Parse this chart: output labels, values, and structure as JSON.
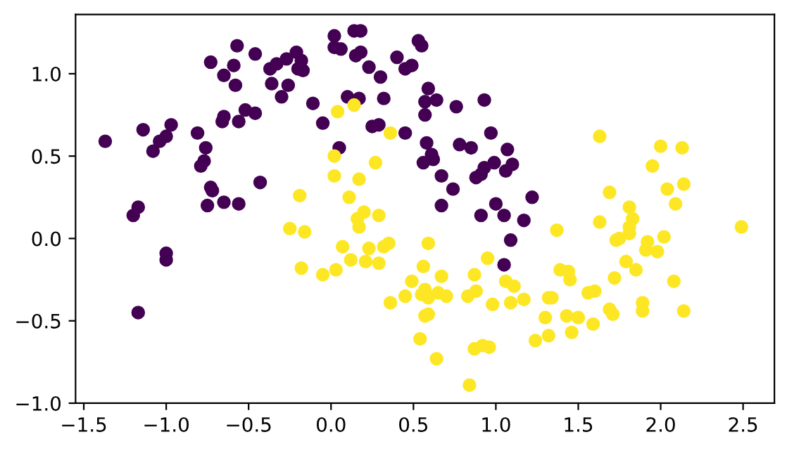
{
  "chart_data": {
    "type": "scatter",
    "xlim": [
      -1.55,
      2.69
    ],
    "ylim": [
      -1.0,
      1.36
    ],
    "xticks": [
      {
        "value": -1.5,
        "label": "−1.5"
      },
      {
        "value": -1.0,
        "label": "−1.0"
      },
      {
        "value": -0.5,
        "label": "−0.5"
      },
      {
        "value": 0.0,
        "label": "0.0"
      },
      {
        "value": 0.5,
        "label": "0.5"
      },
      {
        "value": 1.0,
        "label": "1.0"
      },
      {
        "value": 1.5,
        "label": "1.5"
      },
      {
        "value": 2.0,
        "label": "2.0"
      },
      {
        "value": 2.5,
        "label": "2.5"
      }
    ],
    "yticks": [
      {
        "value": -1.0,
        "label": "−1.0"
      },
      {
        "value": -0.5,
        "label": "−0.5"
      },
      {
        "value": 0.0,
        "label": "0.0"
      },
      {
        "value": 0.5,
        "label": "0.5"
      },
      {
        "value": 1.0,
        "label": "1.0"
      }
    ],
    "grid": false,
    "marker": "circle",
    "series": [
      {
        "color": "#440154",
        "x": [
          -1.37,
          -1.14,
          -0.97,
          -1.0,
          -1.04,
          -1.08,
          -0.81,
          -0.76,
          -0.77,
          -0.79,
          -0.65,
          -0.66,
          -0.56,
          -0.52,
          -0.46,
          -0.43,
          -0.73,
          -0.72,
          -0.65,
          -0.56,
          -0.75,
          -1.17,
          -1.2,
          -1.0,
          -1.0,
          -1.17,
          -0.57,
          -0.46,
          -0.73,
          -0.59,
          -0.65,
          -0.58,
          -0.37,
          -0.33,
          -0.27,
          -0.21,
          -0.18,
          -0.2,
          -0.17,
          -0.36,
          -0.26,
          -0.3,
          -0.11,
          -0.05,
          0.02,
          0.02,
          0.14,
          0.18,
          0.06,
          0.15,
          0.18,
          0.4,
          0.53,
          0.55,
          0.23,
          0.3,
          0.45,
          0.49,
          0.59,
          0.57,
          0.64,
          0.57,
          0.76,
          0.93,
          0.32,
          0.1,
          0.17,
          0.25,
          0.29,
          0.45,
          0.58,
          0.61,
          0.62,
          0.56,
          0.78,
          0.85,
          0.97,
          1.07,
          1.1,
          0.99,
          0.93,
          0.91,
          0.88,
          1.06,
          0.67,
          0.74,
          0.67,
          1.0,
          0.91,
          1.05,
          1.22,
          1.17,
          1.09,
          1.05,
          0.05
        ],
        "values": [
          0.59,
          0.66,
          0.69,
          0.62,
          0.59,
          0.53,
          0.64,
          0.55,
          0.47,
          0.44,
          0.74,
          0.71,
          0.71,
          0.78,
          0.76,
          0.34,
          0.31,
          0.29,
          0.22,
          0.21,
          0.2,
          0.19,
          0.14,
          -0.09,
          -0.13,
          -0.45,
          1.17,
          1.12,
          1.07,
          1.05,
          0.99,
          0.93,
          1.03,
          1.06,
          1.09,
          1.13,
          1.08,
          1.03,
          1.02,
          0.94,
          0.93,
          0.86,
          0.82,
          0.7,
          1.23,
          1.16,
          1.26,
          1.26,
          1.15,
          1.11,
          1.13,
          1.1,
          1.2,
          1.17,
          1.04,
          0.98,
          1.03,
          1.05,
          0.91,
          0.83,
          0.84,
          0.75,
          0.8,
          0.84,
          0.85,
          0.86,
          0.85,
          0.68,
          0.69,
          0.64,
          0.58,
          0.51,
          0.48,
          0.46,
          0.57,
          0.55,
          0.64,
          0.54,
          0.45,
          0.46,
          0.43,
          0.39,
          0.37,
          0.41,
          0.38,
          0.3,
          0.2,
          0.21,
          0.14,
          0.14,
          0.25,
          0.11,
          -0.01,
          -0.16,
          0.55
        ]
      },
      {
        "color": "#fde725",
        "x": [
          0.04,
          0.02,
          0.02,
          -0.19,
          0.14,
          0.36,
          0.27,
          0.17,
          0.11,
          0.2,
          0.16,
          0.17,
          0.29,
          -0.25,
          -0.16,
          0.07,
          0.23,
          0.32,
          0.35,
          0.59,
          1.37,
          0.12,
          0.21,
          0.29,
          -0.18,
          -0.05,
          0.03,
          0.56,
          0.49,
          0.45,
          0.36,
          0.55,
          0.57,
          0.67,
          0.65,
          0.7,
          0.59,
          0.57,
          0.59,
          0.54,
          0.64,
          0.87,
          0.88,
          0.83,
          0.95,
          0.98,
          1.06,
          1.11,
          1.09,
          1.17,
          1.32,
          0.87,
          0.92,
          0.96,
          0.84,
          1.24,
          1.3,
          1.32,
          1.63,
          2.0,
          2.13,
          1.95,
          2.14,
          2.04,
          1.69,
          2.09,
          1.81,
          1.83,
          1.63,
          1.81,
          1.81,
          1.75,
          1.73,
          1.92,
          2.02,
          1.91,
          1.98,
          1.79,
          1.85,
          1.72,
          1.39,
          1.44,
          1.45,
          2.08,
          1.56,
          1.6,
          1.34,
          1.69,
          1.71,
          1.89,
          1.89,
          2.14,
          1.43,
          1.5,
          1.59,
          1.46,
          2.49
        ],
        "values": [
          0.77,
          0.5,
          0.38,
          0.26,
          0.81,
          0.64,
          0.46,
          0.36,
          0.25,
          0.16,
          0.12,
          0.07,
          0.14,
          0.06,
          0.04,
          -0.05,
          -0.06,
          -0.05,
          -0.03,
          -0.03,
          0.05,
          -0.13,
          -0.14,
          -0.15,
          -0.18,
          -0.22,
          -0.19,
          -0.17,
          -0.26,
          -0.35,
          -0.39,
          -0.34,
          -0.31,
          -0.23,
          -0.33,
          -0.35,
          -0.36,
          -0.47,
          -0.46,
          -0.61,
          -0.73,
          -0.22,
          -0.32,
          -0.35,
          -0.12,
          -0.4,
          -0.26,
          -0.29,
          -0.39,
          -0.37,
          -0.36,
          -0.67,
          -0.65,
          -0.66,
          -0.89,
          -0.62,
          -0.48,
          -0.59,
          0.62,
          0.56,
          0.55,
          0.44,
          0.33,
          0.3,
          0.28,
          0.21,
          0.19,
          0.12,
          0.1,
          0.07,
          0.03,
          0.0,
          -0.01,
          -0.02,
          0.01,
          -0.07,
          -0.08,
          -0.14,
          -0.19,
          -0.24,
          -0.19,
          -0.2,
          -0.25,
          -0.26,
          -0.33,
          -0.32,
          -0.36,
          -0.43,
          -0.46,
          -0.39,
          -0.44,
          -0.44,
          -0.47,
          -0.48,
          -0.52,
          -0.57,
          0.07
        ]
      }
    ]
  }
}
